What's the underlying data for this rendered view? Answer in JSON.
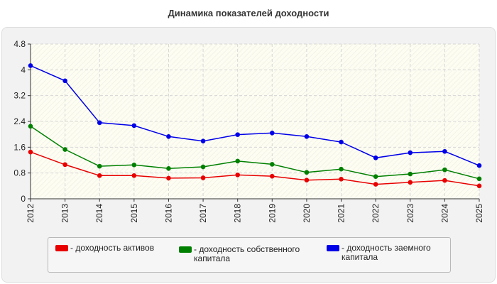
{
  "chart_data": {
    "type": "line",
    "title": "Динамика показателей доходности",
    "x": [
      "2012",
      "2013",
      "2014",
      "2015",
      "2016",
      "2017",
      "2018",
      "2019",
      "2020",
      "2021",
      "2022",
      "2023",
      "2024",
      "2025"
    ],
    "ylim": [
      0,
      4.8
    ],
    "yticks": [
      "0",
      "0.8",
      "1.6",
      "2.4",
      "3.2",
      "4",
      "4.8"
    ],
    "grid": true,
    "legend_position": "bottom",
    "series": [
      {
        "name": "- доходность активов",
        "color": "#e80000",
        "values": [
          1.45,
          1.06,
          0.72,
          0.72,
          0.64,
          0.65,
          0.74,
          0.7,
          0.58,
          0.61,
          0.45,
          0.51,
          0.57,
          0.4
        ]
      },
      {
        "name": "- доходность собственного капитала",
        "color": "#008000",
        "values": [
          2.25,
          1.53,
          1.01,
          1.05,
          0.94,
          0.99,
          1.17,
          1.07,
          0.82,
          0.92,
          0.69,
          0.77,
          0.9,
          0.62
        ]
      },
      {
        "name": "- доходность заемного капитала",
        "color": "#0000e8",
        "values": [
          4.13,
          3.66,
          2.36,
          2.27,
          1.93,
          1.79,
          1.99,
          2.04,
          1.93,
          1.76,
          1.27,
          1.43,
          1.47,
          1.03
        ]
      }
    ]
  }
}
